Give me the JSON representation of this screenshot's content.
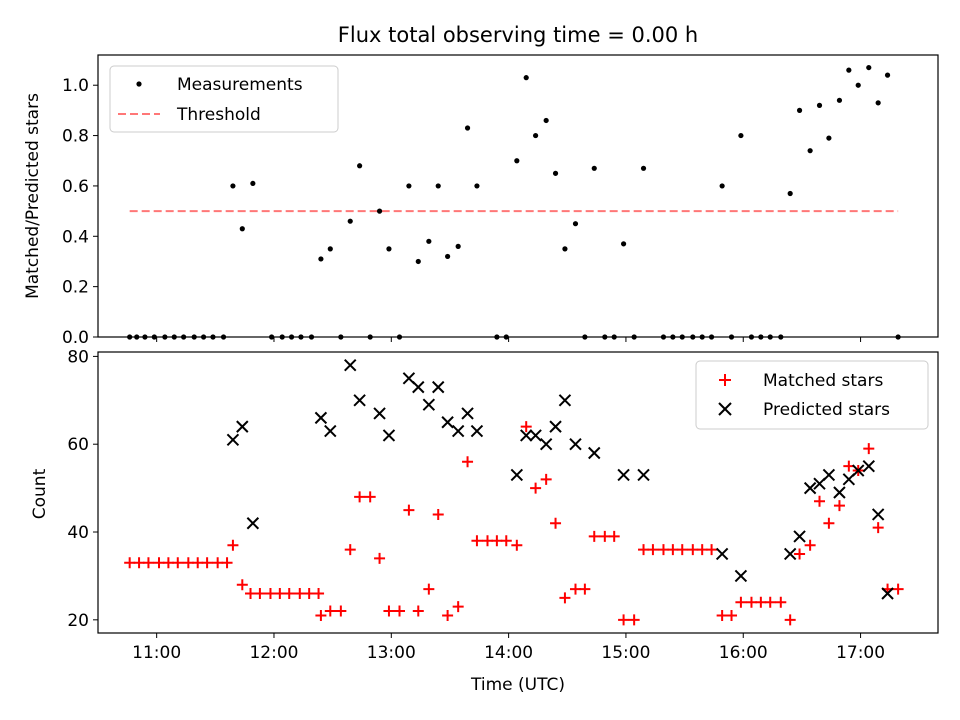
{
  "chart_data": [
    {
      "type": "scatter",
      "title": "Flux total observing time = 0.00 h",
      "ylabel": "Matched/Predicted stars",
      "ylim": [
        0,
        1.12
      ],
      "yticks": [
        0.0,
        0.2,
        0.4,
        0.6,
        0.8,
        1.0
      ],
      "ytick_labels": [
        "0.0",
        "0.2",
        "0.4",
        "0.6",
        "0.8",
        "1.0"
      ],
      "legend_position": "top-left",
      "series": [
        {
          "name": "Measurements",
          "marker": "dot",
          "color": "#000000",
          "points": [
            [
              10.77,
              0
            ],
            [
              10.83,
              0
            ],
            [
              10.9,
              0
            ],
            [
              10.98,
              0
            ],
            [
              11.07,
              0
            ],
            [
              11.15,
              0
            ],
            [
              11.23,
              0
            ],
            [
              11.32,
              0
            ],
            [
              11.4,
              0
            ],
            [
              11.48,
              0
            ],
            [
              11.57,
              0
            ],
            [
              11.65,
              0.6
            ],
            [
              11.73,
              0.43
            ],
            [
              11.82,
              0.61
            ],
            [
              11.98,
              0
            ],
            [
              12.07,
              0
            ],
            [
              12.15,
              0
            ],
            [
              12.23,
              0
            ],
            [
              12.32,
              0
            ],
            [
              12.4,
              0.31
            ],
            [
              12.48,
              0.35
            ],
            [
              12.57,
              0
            ],
            [
              12.65,
              0.46
            ],
            [
              12.73,
              0.68
            ],
            [
              12.82,
              0
            ],
            [
              12.9,
              0.5
            ],
            [
              12.98,
              0.35
            ],
            [
              13.07,
              0
            ],
            [
              13.15,
              0.6
            ],
            [
              13.23,
              0.3
            ],
            [
              13.32,
              0.38
            ],
            [
              13.4,
              0.6
            ],
            [
              13.48,
              0.32
            ],
            [
              13.57,
              0.36
            ],
            [
              13.65,
              0.83
            ],
            [
              13.73,
              0.6
            ],
            [
              13.9,
              0
            ],
            [
              13.98,
              0
            ],
            [
              14.07,
              0.7
            ],
            [
              14.15,
              1.03
            ],
            [
              14.23,
              0.8
            ],
            [
              14.32,
              0.86
            ],
            [
              14.4,
              0.65
            ],
            [
              14.48,
              0.35
            ],
            [
              14.57,
              0.45
            ],
            [
              14.65,
              0
            ],
            [
              14.73,
              0.67
            ],
            [
              14.82,
              0
            ],
            [
              14.9,
              0
            ],
            [
              14.98,
              0.37
            ],
            [
              15.07,
              0
            ],
            [
              15.15,
              0.67
            ],
            [
              15.32,
              0
            ],
            [
              15.4,
              0
            ],
            [
              15.48,
              0
            ],
            [
              15.57,
              0
            ],
            [
              15.65,
              0
            ],
            [
              15.73,
              0
            ],
            [
              15.82,
              0.6
            ],
            [
              15.9,
              0
            ],
            [
              15.98,
              0.8
            ],
            [
              16.07,
              0
            ],
            [
              16.15,
              0
            ],
            [
              16.23,
              0
            ],
            [
              16.32,
              0
            ],
            [
              16.4,
              0.57
            ],
            [
              16.48,
              0.9
            ],
            [
              16.57,
              0.74
            ],
            [
              16.65,
              0.92
            ],
            [
              16.73,
              0.79
            ],
            [
              16.82,
              0.94
            ],
            [
              16.9,
              1.06
            ],
            [
              16.98,
              1.0
            ],
            [
              17.07,
              1.07
            ],
            [
              17.15,
              0.93
            ],
            [
              17.23,
              1.04
            ],
            [
              17.32,
              0
            ]
          ]
        },
        {
          "name": "Threshold",
          "marker": "dashed-line",
          "color": "#ff7777",
          "x": [
            10.77,
            17.32
          ],
          "y": [
            0.5,
            0.5
          ]
        }
      ]
    },
    {
      "type": "scatter",
      "xlabel": "Time (UTC)",
      "ylabel": "Count",
      "xlim": [
        10.5,
        17.66
      ],
      "ylim": [
        17,
        81
      ],
      "xticks": [
        11,
        12,
        13,
        14,
        15,
        16,
        17
      ],
      "xtick_labels": [
        "11:00",
        "12:00",
        "13:00",
        "14:00",
        "15:00",
        "16:00",
        "17:00"
      ],
      "yticks": [
        20,
        40,
        60,
        80
      ],
      "ytick_labels": [
        "20",
        "40",
        "60",
        "80"
      ],
      "legend_position": "top-right",
      "series": [
        {
          "name": "Matched stars",
          "marker": "plus",
          "color": "#ff0000",
          "points": [
            [
              10.77,
              33
            ],
            [
              10.85,
              33
            ],
            [
              10.93,
              33
            ],
            [
              11.02,
              33
            ],
            [
              11.1,
              33
            ],
            [
              11.18,
              33
            ],
            [
              11.27,
              33
            ],
            [
              11.35,
              33
            ],
            [
              11.43,
              33
            ],
            [
              11.52,
              33
            ],
            [
              11.6,
              33
            ],
            [
              11.65,
              37
            ],
            [
              11.73,
              28
            ],
            [
              11.8,
              26
            ],
            [
              11.88,
              26
            ],
            [
              11.97,
              26
            ],
            [
              12.05,
              26
            ],
            [
              12.13,
              26
            ],
            [
              12.22,
              26
            ],
            [
              12.3,
              26
            ],
            [
              12.38,
              26
            ],
            [
              12.4,
              21
            ],
            [
              12.48,
              22
            ],
            [
              12.57,
              22
            ],
            [
              12.65,
              36
            ],
            [
              12.73,
              48
            ],
            [
              12.82,
              48
            ],
            [
              12.9,
              34
            ],
            [
              12.98,
              22
            ],
            [
              13.07,
              22
            ],
            [
              13.15,
              45
            ],
            [
              13.23,
              22
            ],
            [
              13.32,
              27
            ],
            [
              13.4,
              44
            ],
            [
              13.48,
              21
            ],
            [
              13.57,
              23
            ],
            [
              13.65,
              56
            ],
            [
              13.73,
              38
            ],
            [
              13.82,
              38
            ],
            [
              13.9,
              38
            ],
            [
              13.98,
              38
            ],
            [
              14.07,
              37
            ],
            [
              14.15,
              64
            ],
            [
              14.23,
              50
            ],
            [
              14.32,
              52
            ],
            [
              14.4,
              42
            ],
            [
              14.48,
              25
            ],
            [
              14.57,
              27
            ],
            [
              14.65,
              27
            ],
            [
              14.73,
              39
            ],
            [
              14.82,
              39
            ],
            [
              14.9,
              39
            ],
            [
              14.98,
              20
            ],
            [
              15.07,
              20
            ],
            [
              15.15,
              36
            ],
            [
              15.23,
              36
            ],
            [
              15.32,
              36
            ],
            [
              15.4,
              36
            ],
            [
              15.48,
              36
            ],
            [
              15.57,
              36
            ],
            [
              15.65,
              36
            ],
            [
              15.73,
              36
            ],
            [
              15.82,
              21
            ],
            [
              15.9,
              21
            ],
            [
              15.98,
              24
            ],
            [
              16.07,
              24
            ],
            [
              16.15,
              24
            ],
            [
              16.23,
              24
            ],
            [
              16.32,
              24
            ],
            [
              16.4,
              20
            ],
            [
              16.48,
              35
            ],
            [
              16.57,
              37
            ],
            [
              16.65,
              47
            ],
            [
              16.73,
              42
            ],
            [
              16.82,
              46
            ],
            [
              16.9,
              55
            ],
            [
              16.98,
              54
            ],
            [
              17.07,
              59
            ],
            [
              17.15,
              41
            ],
            [
              17.23,
              27
            ],
            [
              17.32,
              27
            ]
          ]
        },
        {
          "name": "Predicted stars",
          "marker": "x",
          "color": "#000000",
          "points": [
            [
              11.65,
              61
            ],
            [
              11.73,
              64
            ],
            [
              11.82,
              42
            ],
            [
              12.4,
              66
            ],
            [
              12.48,
              63
            ],
            [
              12.65,
              78
            ],
            [
              12.73,
              70
            ],
            [
              12.9,
              67
            ],
            [
              12.98,
              62
            ],
            [
              13.15,
              75
            ],
            [
              13.23,
              73
            ],
            [
              13.32,
              69
            ],
            [
              13.4,
              73
            ],
            [
              13.48,
              65
            ],
            [
              13.57,
              63
            ],
            [
              13.65,
              67
            ],
            [
              13.73,
              63
            ],
            [
              14.07,
              53
            ],
            [
              14.15,
              62
            ],
            [
              14.23,
              62
            ],
            [
              14.32,
              60
            ],
            [
              14.4,
              64
            ],
            [
              14.48,
              70
            ],
            [
              14.57,
              60
            ],
            [
              14.73,
              58
            ],
            [
              14.98,
              53
            ],
            [
              15.15,
              53
            ],
            [
              15.82,
              35
            ],
            [
              15.98,
              30
            ],
            [
              16.4,
              35
            ],
            [
              16.48,
              39
            ],
            [
              16.57,
              50
            ],
            [
              16.65,
              51
            ],
            [
              16.73,
              53
            ],
            [
              16.82,
              49
            ],
            [
              16.9,
              52
            ],
            [
              16.98,
              54
            ],
            [
              17.07,
              55
            ],
            [
              17.15,
              44
            ],
            [
              17.23,
              26
            ]
          ]
        }
      ]
    }
  ]
}
